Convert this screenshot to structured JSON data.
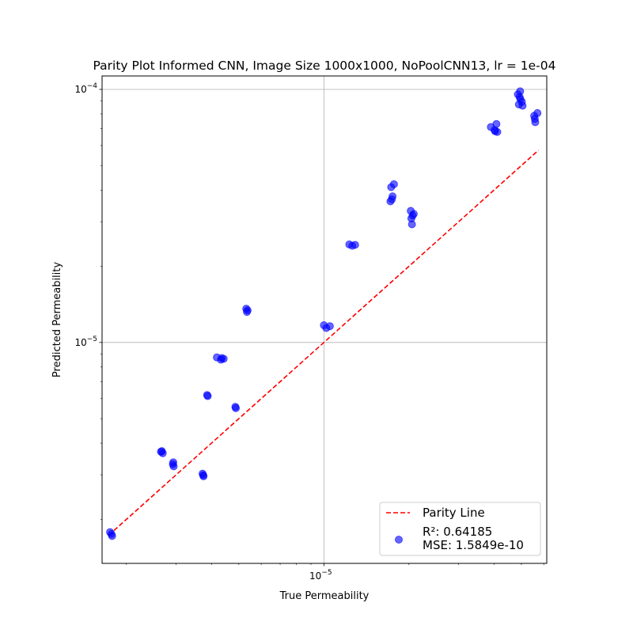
{
  "chart_data": {
    "type": "scatter",
    "title": "Parity Plot Informed CNN, Image Size 1000x1000, NoPoolCNN13, lr = 1e-04",
    "xlabel": "True Permeability",
    "ylabel": "Predicted Permeability",
    "xscale": "log",
    "yscale": "log",
    "xlim": [
      1.64e-06,
      6.15e-05
    ],
    "ylim": [
      1.34e-06,
      0.000113
    ],
    "grid": true,
    "x_tick_labels": [
      {
        "value": 1e-05,
        "mantissa": "10",
        "exp": "−5"
      }
    ],
    "y_tick_labels": [
      {
        "value": 1e-05,
        "mantissa": "10",
        "exp": "−5"
      },
      {
        "value": 0.0001,
        "mantissa": "10",
        "exp": "−4"
      }
    ],
    "parity_line": {
      "name": "Parity Line",
      "x": [
        1.73e-06,
        5.75e-05
      ],
      "y": [
        1.73e-06,
        5.75e-05
      ],
      "color": "#ff0000"
    },
    "series": [
      {
        "name": "R²: 0.64185\nMSE: 1.5849e-10",
        "legend_line1": "R²: 0.64185",
        "legend_line2": "MSE: 1.5849e-10",
        "color": "#0000ff",
        "x": [
          1.75e-06,
          1.78e-06,
          1.77e-06,
          2.67e-06,
          2.69e-06,
          2.65e-06,
          2.93e-06,
          2.94e-06,
          2.92e-06,
          3.72e-06,
          3.75e-06,
          3.74e-06,
          3.86e-06,
          3.88e-06,
          4.18e-06,
          4.32e-06,
          4.35e-06,
          4.42e-06,
          4.86e-06,
          4.88e-06,
          5.31e-06,
          5.34e-06,
          5.37e-06,
          1e-05,
          1.02e-05,
          1.05e-05,
          1.23e-05,
          1.26e-05,
          1.29e-05,
          1.72e-05,
          1.75e-05,
          1.73e-05,
          1.77e-05,
          1.74e-05,
          2.03e-05,
          2.06e-05,
          2.04e-05,
          2.08e-05,
          2.05e-05,
          3.9e-05,
          4.02e-05,
          4.08e-05,
          4.04e-05,
          4.11e-05,
          4.86e-05,
          4.95e-05,
          5.02e-05,
          4.9e-05,
          4.93e-05,
          4.96e-05,
          5.05e-05,
          5.55e-05,
          5.6e-05,
          5.58e-05,
          5.7e-05
        ],
        "y": [
          1.78e-06,
          1.72e-06,
          1.75e-06,
          3.72e-06,
          3.65e-06,
          3.7e-06,
          3.36e-06,
          3.24e-06,
          3.3e-06,
          3.03e-06,
          2.96e-06,
          2.99e-06,
          6.2e-06,
          6.14e-06,
          8.73e-06,
          8.55e-06,
          8.68e-06,
          8.62e-06,
          5.57e-06,
          5.5e-06,
          1.36e-05,
          1.32e-05,
          1.34e-05,
          1.17e-05,
          1.14e-05,
          1.16e-05,
          2.44e-05,
          2.41e-05,
          2.43e-05,
          3.61e-05,
          3.78e-05,
          4.11e-05,
          4.22e-05,
          3.68e-05,
          3.31e-05,
          3.17e-05,
          3.09e-05,
          3.22e-05,
          2.93e-05,
          7.1e-05,
          6.91e-05,
          7.3e-05,
          6.83e-05,
          6.79e-05,
          9.56e-05,
          9.83e-05,
          8.93e-05,
          8.72e-05,
          9.34e-05,
          9.15e-05,
          8.62e-05,
          7.86e-05,
          7.42e-05,
          7.65e-05,
          8.06e-05
        ]
      }
    ],
    "legend_position": "lower right"
  }
}
